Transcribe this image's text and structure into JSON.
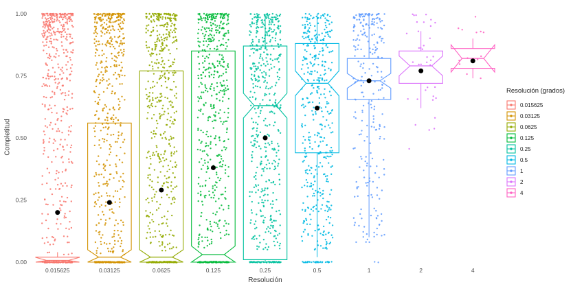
{
  "figure": {
    "ylabel": "Completitud",
    "xlabel": "Resolución"
  },
  "chart_data": {
    "type": "boxplot_jitter",
    "title": "",
    "xlabel": "Resolución",
    "ylabel": "Completitud",
    "ylim": [
      0,
      1
    ],
    "grid": false,
    "y_ticks": [
      0,
      0.25,
      0.5,
      0.75,
      1
    ],
    "y_tick_labels": [
      "0.00",
      "0.25",
      "0.50",
      "0.75",
      "1.00"
    ],
    "categories": [
      "0.015625",
      "0.03125",
      "0.0625",
      "0.125",
      "0.25",
      "0.5",
      "1",
      "2",
      "4"
    ],
    "legend": {
      "title": "Resolución (grados)",
      "position": "right",
      "entries": [
        "0.015625",
        "0.03125",
        "0.0625",
        "0.125",
        "0.25",
        "0.5",
        "1",
        "2",
        "4"
      ]
    },
    "series": [
      {
        "label": "0.015625",
        "color": "#F8766D",
        "mean": 0.2,
        "box": {
          "lo": 0.0,
          "q1": 0.0,
          "med": 0.007,
          "q3": 0.02,
          "hi": 0.04,
          "notch": 0.012
        },
        "jitter": {
          "n": 450,
          "min": 0.03,
          "skew": 2.3,
          "zeros": 150
        }
      },
      {
        "label": "0.03125",
        "color": "#D39200",
        "mean": 0.24,
        "box": {
          "lo": 0.0,
          "q1": 0.0,
          "med": 0.02,
          "q3": 0.56,
          "hi": 0.56,
          "notch": 0.03
        },
        "jitter": {
          "n": 500,
          "min": 0.03,
          "skew": 2.0,
          "zeros": 130
        }
      },
      {
        "label": "0.0625",
        "color": "#93AA00",
        "mean": 0.29,
        "box": {
          "lo": 0.0,
          "q1": 0.0,
          "med": 0.02,
          "q3": 0.77,
          "hi": 0.77,
          "notch": 0.03
        },
        "jitter": {
          "n": 500,
          "min": 0.04,
          "skew": 1.9,
          "zeros": 110
        }
      },
      {
        "label": "0.125",
        "color": "#00BA38",
        "mean": 0.38,
        "box": {
          "lo": 0.0,
          "q1": 0.0,
          "med": 0.03,
          "q3": 0.85,
          "hi": 0.85,
          "notch": 0.035
        },
        "jitter": {
          "n": 500,
          "min": 0.05,
          "skew": 1.8,
          "zeros": 90
        }
      },
      {
        "label": "0.25",
        "color": "#00C19F",
        "mean": 0.5,
        "box": {
          "lo": 0.0,
          "q1": 0.01,
          "med": 0.63,
          "q3": 0.87,
          "hi": 1.0,
          "notch": 0.05
        },
        "jitter": {
          "n": 500,
          "min": 0.05,
          "skew": 1.6,
          "zeros": 70
        }
      },
      {
        "label": "0.5",
        "color": "#00B9E3",
        "mean": 0.62,
        "box": {
          "lo": 0.02,
          "q1": 0.44,
          "med": 0.72,
          "q3": 0.88,
          "hi": 1.0,
          "notch": 0.05
        },
        "jitter": {
          "n": 430,
          "min": 0.04,
          "skew": 1.45,
          "zeros": 40
        }
      },
      {
        "label": "1",
        "color": "#619CFF",
        "mean": 0.73,
        "box": {
          "lo": 0.1,
          "q1": 0.655,
          "med": 0.73,
          "q3": 0.82,
          "hi": 1.0,
          "notch": 0.03
        },
        "jitter": {
          "n": 260,
          "min": 0.08,
          "skew": 1.9,
          "zeros": 2
        }
      },
      {
        "label": "2",
        "color": "#DB72FB",
        "mean": 0.77,
        "box": {
          "lo": 0.62,
          "q1": 0.72,
          "med": 0.79,
          "q3": 0.85,
          "hi": 0.93,
          "notch": 0.04
        },
        "jitter": {
          "n": 38,
          "min": 0.45,
          "skew": 1.3,
          "zeros": 0
        }
      },
      {
        "label": "4",
        "color": "#FF61C3",
        "mean": 0.81,
        "box": {
          "lo": 0.74,
          "q1": 0.78,
          "med": 0.82,
          "q3": 0.86,
          "hi": 0.9,
          "notch": 0.055
        },
        "jitter": {
          "n": 13,
          "min": 0.72,
          "skew": 1.0,
          "zeros": 0
        }
      }
    ]
  }
}
